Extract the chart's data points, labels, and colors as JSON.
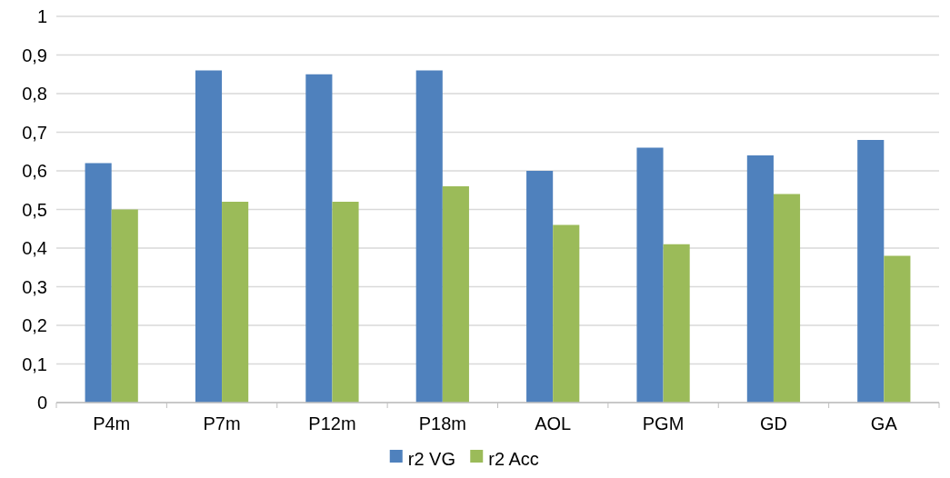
{
  "chart_data": {
    "type": "bar",
    "categories": [
      "P4m",
      "P7m",
      "P12m",
      "P18m",
      "AOL",
      "PGM",
      "GD",
      "GA"
    ],
    "series": [
      {
        "name": "r2 VG",
        "color": "#4f81bd",
        "values": [
          0.62,
          0.86,
          0.85,
          0.86,
          0.6,
          0.66,
          0.64,
          0.68
        ]
      },
      {
        "name": "r2 Acc",
        "color": "#9bbb59",
        "values": [
          0.5,
          0.52,
          0.52,
          0.56,
          0.46,
          0.41,
          0.54,
          0.38
        ]
      }
    ],
    "ylim": [
      0,
      1
    ],
    "yticks": [
      {
        "value": 0,
        "label": "0"
      },
      {
        "value": 0.1,
        "label": "0,1"
      },
      {
        "value": 0.2,
        "label": "0,2"
      },
      {
        "value": 0.3,
        "label": "0,3"
      },
      {
        "value": 0.4,
        "label": "0,4"
      },
      {
        "value": 0.5,
        "label": "0,5"
      },
      {
        "value": 0.6,
        "label": "0,6"
      },
      {
        "value": 0.7,
        "label": "0,7"
      },
      {
        "value": 0.8,
        "label": "0,8"
      },
      {
        "value": 0.9,
        "label": "0,9"
      },
      {
        "value": 1,
        "label": "1"
      }
    ],
    "grid": "y",
    "legend": "bottom"
  }
}
